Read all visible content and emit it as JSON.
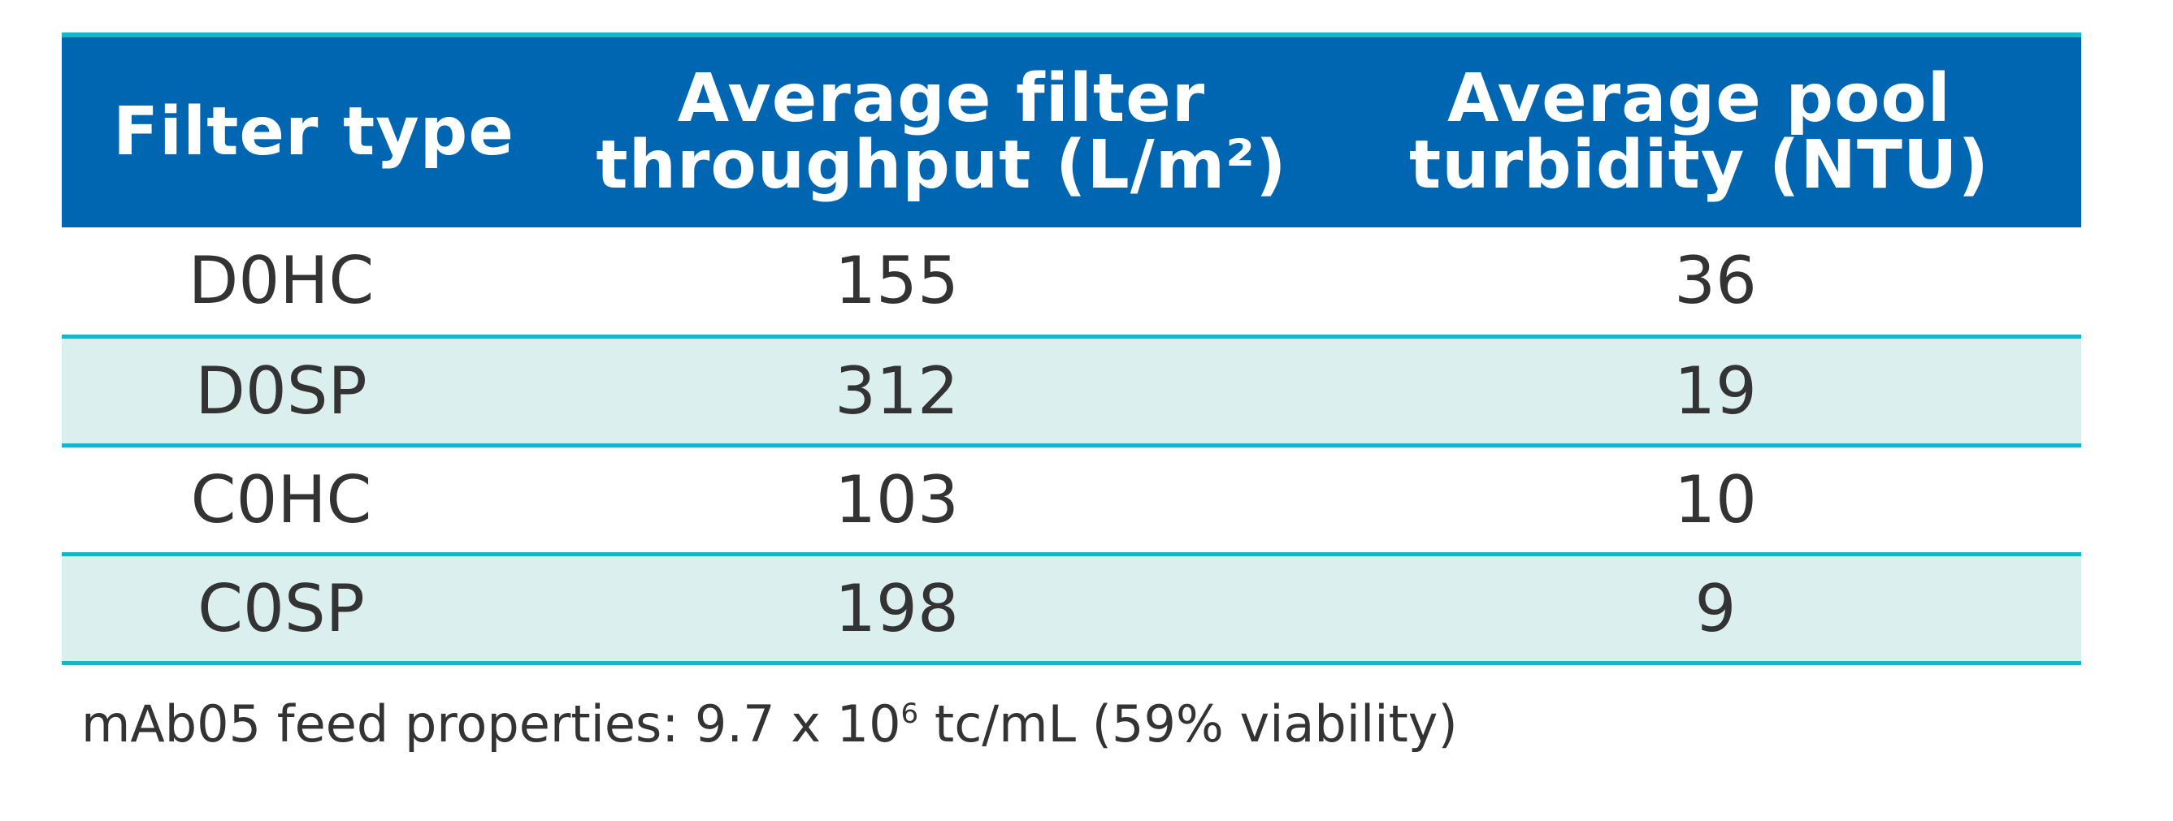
{
  "table": {
    "headers": [
      {
        "lines": [
          "Filter type"
        ]
      },
      {
        "lines": [
          "Average filter",
          "throughput (L/m²)"
        ]
      },
      {
        "lines": [
          "Average pool",
          "turbidity (NTU)"
        ]
      }
    ],
    "rows": [
      [
        "D0HC",
        "155",
        "36"
      ],
      [
        "D0SP",
        "312",
        "19"
      ],
      [
        "C0HC",
        "103",
        "10"
      ],
      [
        "C0SP",
        "198",
        "9"
      ]
    ]
  },
  "footnote": {
    "prefix": "mAb05 feed properties: 9.7 x 10",
    "superscript": "6",
    "suffix": " tc/mL (59% viability)"
  },
  "colors": {
    "header_background": "#0066b2",
    "rule": "#16b6c8",
    "shaded_row": "#dcefef"
  }
}
